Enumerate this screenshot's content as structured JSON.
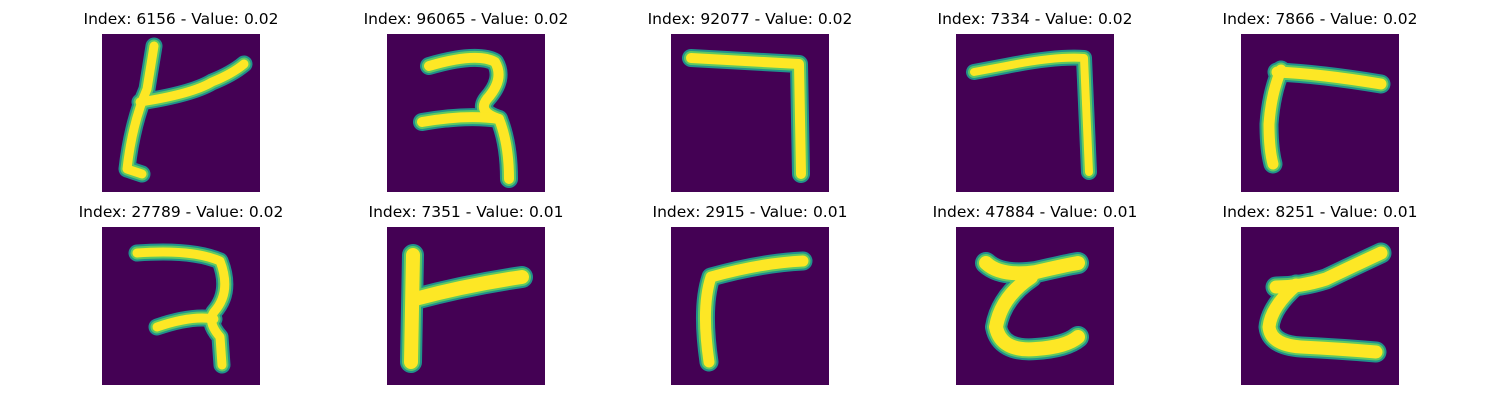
{
  "colormap": {
    "low": "#440154",
    "edge": "#21918c",
    "mid": "#5ec962",
    "high": "#fde725"
  },
  "panels": [
    {
      "title": "Index: 6156 - Value: 0.02"
    },
    {
      "title": "Index: 96065 - Value: 0.02"
    },
    {
      "title": "Index: 92077 - Value: 0.02"
    },
    {
      "title": "Index: 7334 - Value: 0.02"
    },
    {
      "title": "Index: 7866 - Value: 0.02"
    },
    {
      "title": "Index: 27789 - Value: 0.02"
    },
    {
      "title": "Index: 7351 - Value: 0.01"
    },
    {
      "title": "Index: 2915 - Value: 0.01"
    },
    {
      "title": "Index: 47884 - Value: 0.01"
    },
    {
      "title": "Index: 8251 - Value: 0.01"
    }
  ]
}
